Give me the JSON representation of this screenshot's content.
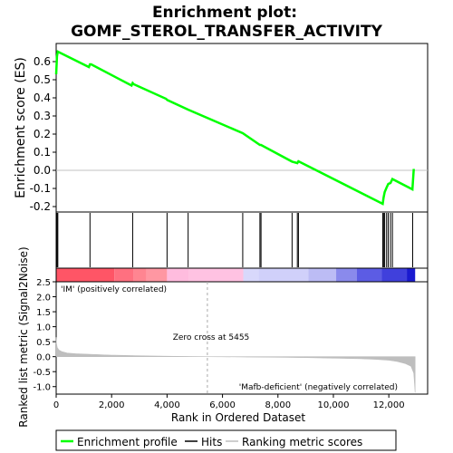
{
  "chart_data": [
    {
      "type": "line",
      "title": "Enrichment plot:\nGOMF_STEROL_TRANSFER_ACTIVITY",
      "title_lines": [
        "Enrichment plot:",
        "GOMF_STEROL_TRANSFER_ACTIVITY"
      ],
      "ylabel": "Enrichment score (ES)",
      "xlim": [
        0,
        13400
      ],
      "ylim": [
        -0.23,
        0.7
      ],
      "yticks": [
        -0.2,
        -0.1,
        0.0,
        0.1,
        0.2,
        0.3,
        0.4,
        0.5,
        0.6
      ],
      "ytick_labels": [
        "-0.2",
        "-0.1",
        "0.0",
        "0.1",
        "0.2",
        "0.3",
        "0.4",
        "0.5",
        "0.6"
      ],
      "grid": false,
      "series": [
        {
          "name": "Enrichment profile",
          "color": "#00ff00",
          "x": [
            0,
            30,
            60,
            1180,
            1220,
            1260,
            2720,
            2760,
            2800,
            3960,
            4010,
            4760,
            6730,
            7350,
            7390,
            8510,
            8700,
            8740,
            11780,
            11810,
            11850,
            11920,
            11980,
            12060,
            12130,
            12850,
            12900
          ],
          "y": [
            0.53,
            0.63,
            0.655,
            0.57,
            0.585,
            0.585,
            0.468,
            0.482,
            0.475,
            0.395,
            0.388,
            0.335,
            0.205,
            0.14,
            0.14,
            0.048,
            0.04,
            0.05,
            -0.185,
            -0.15,
            -0.12,
            -0.095,
            -0.075,
            -0.07,
            -0.048,
            -0.105,
            0.008
          ]
        }
      ]
    },
    {
      "type": "scatter",
      "name": "hits",
      "legend_label": "Hits",
      "x": [
        30,
        60,
        1220,
        2760,
        4000,
        4760,
        6730,
        7350,
        7390,
        8510,
        8700,
        8740,
        11780,
        11810,
        11850,
        11920,
        11980,
        12060,
        12130,
        12860
      ]
    },
    {
      "type": "heatmap",
      "name": "ranked-list-color-bar",
      "segments": [
        {
          "start": 0,
          "end": 2100,
          "color": "#ff5566"
        },
        {
          "start": 2100,
          "end": 2800,
          "color": "#ff7080"
        },
        {
          "start": 2800,
          "end": 3250,
          "color": "#ff8591"
        },
        {
          "start": 3250,
          "end": 4000,
          "color": "#ff97a2"
        },
        {
          "start": 4000,
          "end": 4800,
          "color": "#ffbcde"
        },
        {
          "start": 4800,
          "end": 6750,
          "color": "#ffc2e2"
        },
        {
          "start": 6750,
          "end": 7300,
          "color": "#d8d8fb"
        },
        {
          "start": 7300,
          "end": 9100,
          "color": "#d0d0fa"
        },
        {
          "start": 9100,
          "end": 10100,
          "color": "#bcbcf5"
        },
        {
          "start": 10100,
          "end": 10850,
          "color": "#8a8aec"
        },
        {
          "start": 10850,
          "end": 11750,
          "color": "#5c5ce4"
        },
        {
          "start": 11750,
          "end": 12650,
          "color": "#4040dc"
        },
        {
          "start": 12650,
          "end": 12950,
          "color": "#1a1ad0"
        }
      ]
    },
    {
      "type": "area",
      "ylabel": "Ranked list metric (Signal2Noise)",
      "xlabel": "Rank in Ordered Dataset",
      "xlim": [
        0,
        13400
      ],
      "ylim": [
        -1.25,
        2.5
      ],
      "xticks": [
        0,
        2000,
        4000,
        6000,
        8000,
        10000,
        12000
      ],
      "xtick_labels": [
        "0",
        "2,000",
        "4,000",
        "6,000",
        "8,000",
        "10,000",
        "12,000"
      ],
      "yticks": [
        -1.0,
        -0.5,
        0.0,
        0.5,
        1.0,
        1.5,
        2.0,
        2.5
      ],
      "ytick_labels": [
        "-1.0",
        "-0.5",
        "0.0",
        "0.5",
        "1.0",
        "1.5",
        "2.0",
        "2.5"
      ],
      "color": "#bebebe",
      "x": [
        0,
        10,
        40,
        100,
        200,
        400,
        700,
        1200,
        2000,
        3000,
        4000,
        5000,
        5455,
        6000,
        7000,
        8000,
        9000,
        10000,
        11000,
        11500,
        12000,
        12300,
        12600,
        12800,
        12900,
        12950
      ],
      "y": [
        0.65,
        0.45,
        0.3,
        0.22,
        0.17,
        0.12,
        0.1,
        0.08,
        0.05,
        0.03,
        0.015,
        0.005,
        0.0,
        -0.005,
        -0.012,
        -0.02,
        -0.03,
        -0.05,
        -0.07,
        -0.09,
        -0.12,
        -0.16,
        -0.23,
        -0.32,
        -0.55,
        -1.2
      ],
      "zero_cross_x": 5455,
      "annotations": {
        "zero_cross": "Zero cross at 5455",
        "positive": "'IM' (positively correlated)",
        "negative": "'Mafb-deficient' (negatively correlated)"
      },
      "annotation_colors": {
        "positive": "#cc0000",
        "negative": "#2222aa"
      }
    }
  ],
  "legend": {
    "placement": "bottom",
    "entries": [
      {
        "label": "Enrichment profile",
        "color": "#00ff00"
      },
      {
        "label": "Hits",
        "color": "#000000"
      },
      {
        "label": "Ranking metric scores",
        "color": "#bebebe"
      }
    ]
  }
}
